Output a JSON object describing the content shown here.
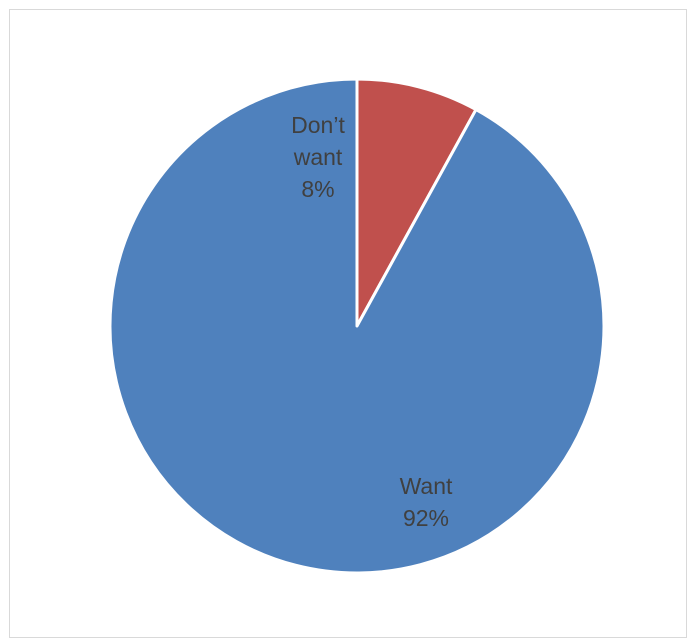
{
  "chart_data": {
    "type": "pie",
    "title": "",
    "slices": [
      {
        "label": "Don’t want",
        "value": 8,
        "percent_label": "8%",
        "color": "#C0504D"
      },
      {
        "label": "Want",
        "value": 92,
        "percent_label": "92%",
        "color": "#4F81BD"
      }
    ],
    "start_angle_deg": 0,
    "direction": "clockwise",
    "legend": "none",
    "data_labels": "inside"
  }
}
